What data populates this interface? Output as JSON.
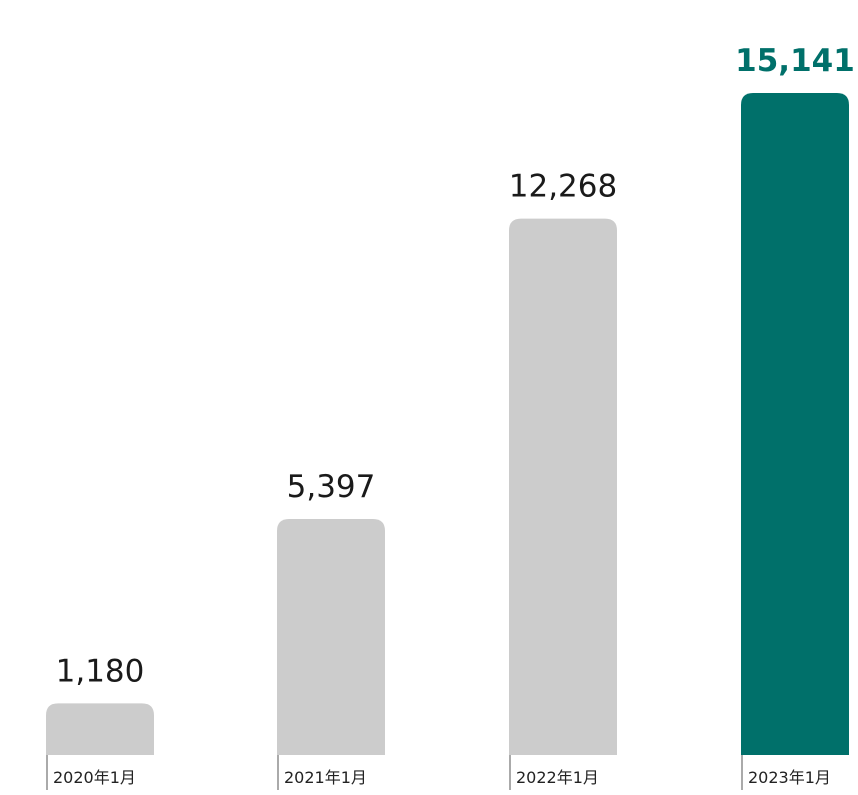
{
  "chart_data": {
    "type": "bar",
    "categories": [
      "2020年1月",
      "2021年1月",
      "2022年1月",
      "2023年1月"
    ],
    "values": [
      1180,
      5397,
      12268,
      15141
    ],
    "value_labels": [
      "1,180",
      "5,397",
      "12,268",
      "15,141"
    ],
    "colors": [
      "#cccccc",
      "#cccccc",
      "#cccccc",
      "#00706a"
    ],
    "value_label_colors": [
      "#1a1a1a",
      "#1a1a1a",
      "#1a1a1a",
      "#00706a"
    ]
  }
}
